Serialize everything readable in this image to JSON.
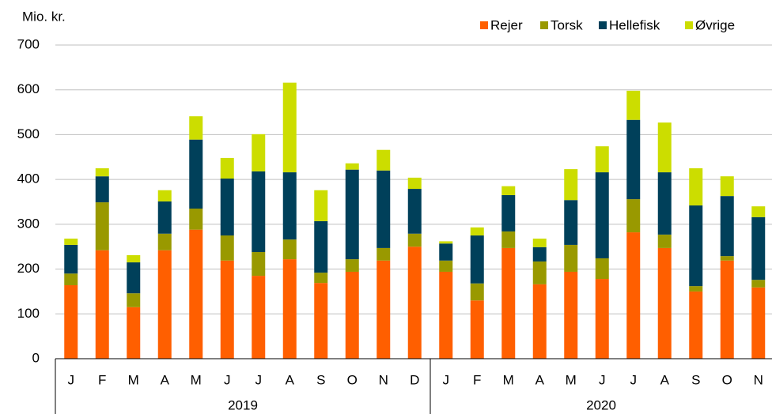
{
  "chart_data": {
    "type": "stacked_bar",
    "y_label": "Mio. kr.",
    "groups": [
      {
        "label": "2019",
        "months": [
          "J",
          "F",
          "M",
          "A",
          "M",
          "J",
          "J",
          "A",
          "S",
          "O",
          "N",
          "D"
        ]
      },
      {
        "label": "2020",
        "months": [
          "J",
          "F",
          "M",
          "A",
          "M",
          "J",
          "J",
          "A",
          "S",
          "O",
          "N"
        ]
      }
    ],
    "series": [
      {
        "name": "Rejer",
        "color": "#ff5f00",
        "values": [
          164,
          242,
          115,
          242,
          288,
          219,
          185,
          222,
          169,
          194,
          219,
          250,
          194,
          130,
          247,
          166,
          194,
          178,
          282,
          247,
          150,
          219,
          159
        ]
      },
      {
        "name": "Torsk",
        "color": "#999900",
        "values": [
          26,
          107,
          31,
          37,
          47,
          56,
          53,
          44,
          23,
          28,
          28,
          29,
          25,
          38,
          37,
          51,
          60,
          46,
          74,
          30,
          12,
          10,
          17
        ]
      },
      {
        "name": "Hellefisk",
        "color": "#00405a",
        "values": [
          64,
          58,
          69,
          72,
          154,
          127,
          180,
          150,
          115,
          200,
          173,
          100,
          38,
          107,
          81,
          32,
          100,
          192,
          177,
          139,
          180,
          134,
          140
        ]
      },
      {
        "name": "Øvrige",
        "color": "#ccdd00",
        "values": [
          14,
          18,
          16,
          25,
          52,
          46,
          83,
          200,
          69,
          14,
          46,
          25,
          5,
          18,
          20,
          19,
          69,
          58,
          65,
          111,
          83,
          44,
          24
        ]
      }
    ],
    "ylim": [
      0,
      700
    ],
    "yticks": [
      0,
      100,
      200,
      300,
      400,
      500,
      600,
      700
    ],
    "grid": true
  }
}
